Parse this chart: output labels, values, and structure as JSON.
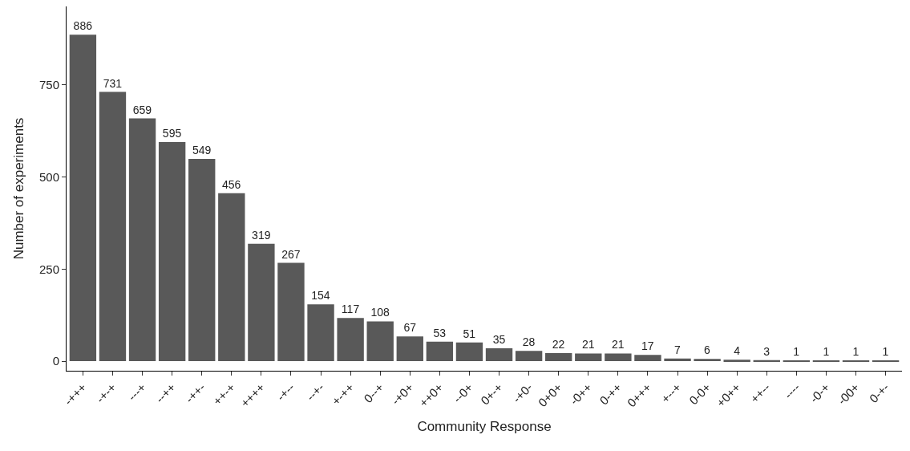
{
  "chart_data": {
    "type": "bar",
    "xlabel": "Community Response",
    "ylabel": "Number of experiments",
    "categories": [
      "-+++",
      "-+-+",
      "---+",
      "--++",
      "-++-",
      "++-+",
      "++++",
      "-+--",
      "--+-",
      "+-++",
      "0--+",
      "-+0+",
      "++0+",
      "--0+",
      "0+-+",
      "-+0-",
      "0+0+",
      "-0++",
      "0-++",
      "0+++",
      "+--+",
      "0-0+",
      "+0++",
      "++--",
      "----",
      "-0-+",
      "-00+",
      "0-+-"
    ],
    "values": [
      886,
      731,
      659,
      595,
      549,
      456,
      319,
      267,
      154,
      117,
      108,
      67,
      53,
      51,
      35,
      28,
      22,
      21,
      21,
      17,
      7,
      6,
      4,
      3,
      1,
      1,
      1,
      1
    ],
    "color": "#595959",
    "data_labels": true,
    "ylim": [
      -26,
      963
    ],
    "yticks": [
      0,
      250,
      500,
      750
    ]
  }
}
